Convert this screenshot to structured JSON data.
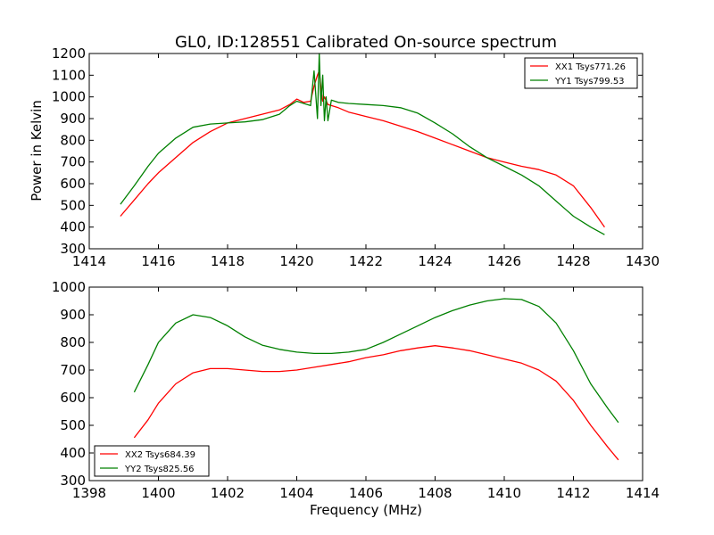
{
  "chart_data": [
    {
      "type": "line",
      "title": "GL0, ID:128551 Calibrated On-source spectrum",
      "xlabel": "",
      "ylabel": "Power in Kelvin",
      "xlim": [
        1414,
        1430
      ],
      "ylim": [
        300,
        1200
      ],
      "xticks": [
        "1414",
        "1416",
        "1418",
        "1420",
        "1422",
        "1424",
        "1426",
        "1428",
        "1430"
      ],
      "yticks": [
        "300",
        "400",
        "500",
        "600",
        "700",
        "800",
        "900",
        "1000",
        "1100",
        "1200"
      ],
      "grid": false,
      "legend_position": "top-right",
      "series": [
        {
          "name": "XX1 Tsys771.26",
          "color": "#ff0000",
          "x": [
            1414.9,
            1415.3,
            1415.7,
            1416.0,
            1416.5,
            1417.0,
            1417.5,
            1418.0,
            1418.5,
            1419.0,
            1419.5,
            1419.8,
            1420.0,
            1420.2,
            1420.4,
            1420.5,
            1420.6,
            1420.65,
            1420.7,
            1420.75,
            1420.8,
            1420.9,
            1421.0,
            1421.2,
            1421.5,
            1422.0,
            1422.5,
            1423.0,
            1423.5,
            1424.0,
            1424.5,
            1425.0,
            1425.5,
            1426.0,
            1426.5,
            1427.0,
            1427.5,
            1428.0,
            1428.5,
            1428.9
          ],
          "y": [
            450,
            525,
            600,
            650,
            720,
            790,
            840,
            880,
            900,
            920,
            940,
            965,
            990,
            975,
            980,
            1050,
            1100,
            1120,
            1040,
            980,
            1000,
            965,
            960,
            950,
            930,
            910,
            890,
            865,
            840,
            810,
            780,
            750,
            720,
            700,
            680,
            665,
            640,
            590,
            490,
            400
          ]
        },
        {
          "name": "YY1 Tsys799.53",
          "color": "#008000",
          "x": [
            1414.9,
            1415.3,
            1415.7,
            1416.0,
            1416.5,
            1417.0,
            1417.5,
            1418.0,
            1418.5,
            1419.0,
            1419.5,
            1419.8,
            1420.0,
            1420.2,
            1420.4,
            1420.5,
            1420.6,
            1420.65,
            1420.7,
            1420.75,
            1420.8,
            1420.85,
            1420.9,
            1421.0,
            1421.2,
            1421.5,
            1422.0,
            1422.5,
            1423.0,
            1423.5,
            1424.0,
            1424.5,
            1425.0,
            1425.5,
            1426.0,
            1426.5,
            1427.0,
            1427.5,
            1428.0,
            1428.5,
            1428.9
          ],
          "y": [
            505,
            590,
            680,
            740,
            810,
            860,
            875,
            880,
            885,
            895,
            920,
            960,
            980,
            970,
            960,
            1120,
            900,
            1200,
            960,
            1100,
            890,
            1000,
            890,
            985,
            975,
            970,
            965,
            960,
            950,
            925,
            880,
            830,
            770,
            720,
            680,
            640,
            590,
            520,
            450,
            400,
            365
          ]
        }
      ]
    },
    {
      "type": "line",
      "title": "",
      "xlabel": "Frequency (MHz)",
      "ylabel": "",
      "xlim": [
        1398,
        1414
      ],
      "ylim": [
        300,
        1000
      ],
      "xticks": [
        "1398",
        "1400",
        "1402",
        "1404",
        "1406",
        "1408",
        "1410",
        "1412",
        "1414"
      ],
      "yticks": [
        "300",
        "400",
        "500",
        "600",
        "700",
        "800",
        "900",
        "1000"
      ],
      "grid": false,
      "legend_position": "bottom-left",
      "series": [
        {
          "name": "XX2 Tsys684.39",
          "color": "#ff0000",
          "x": [
            1399.3,
            1399.7,
            1400.0,
            1400.5,
            1401.0,
            1401.5,
            1402.0,
            1402.5,
            1403.0,
            1403.5,
            1404.0,
            1404.5,
            1405.0,
            1405.5,
            1406.0,
            1406.5,
            1407.0,
            1407.5,
            1408.0,
            1408.5,
            1409.0,
            1409.5,
            1410.0,
            1410.5,
            1411.0,
            1411.5,
            1412.0,
            1412.5,
            1413.0,
            1413.3
          ],
          "y": [
            455,
            520,
            580,
            650,
            690,
            705,
            705,
            700,
            695,
            695,
            700,
            710,
            720,
            730,
            745,
            755,
            770,
            780,
            788,
            780,
            770,
            755,
            740,
            725,
            700,
            660,
            590,
            500,
            420,
            375
          ]
        },
        {
          "name": "YY2 Tsys825.56",
          "color": "#008000",
          "x": [
            1399.3,
            1399.7,
            1400.0,
            1400.5,
            1401.0,
            1401.5,
            1402.0,
            1402.5,
            1403.0,
            1403.5,
            1404.0,
            1404.5,
            1405.0,
            1405.5,
            1406.0,
            1406.5,
            1407.0,
            1407.5,
            1408.0,
            1408.5,
            1409.0,
            1409.5,
            1410.0,
            1410.5,
            1411.0,
            1411.5,
            1412.0,
            1412.5,
            1413.0,
            1413.3
          ],
          "y": [
            620,
            720,
            800,
            870,
            900,
            890,
            860,
            820,
            790,
            775,
            765,
            760,
            760,
            765,
            775,
            800,
            830,
            860,
            890,
            915,
            935,
            950,
            958,
            955,
            930,
            870,
            770,
            650,
            560,
            510
          ]
        }
      ]
    }
  ]
}
